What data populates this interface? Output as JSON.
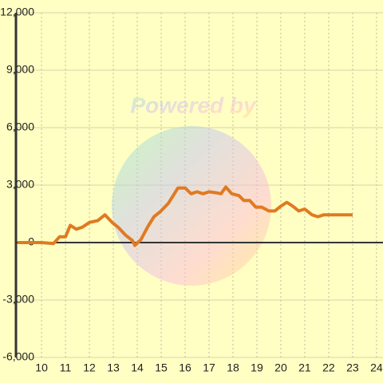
{
  "chart_data": {
    "type": "line",
    "watermark": "Powered by",
    "xlim": [
      8.93,
      24.27
    ],
    "ylim": [
      -6000,
      12000
    ],
    "xticks": [
      10,
      11,
      12,
      13,
      14,
      15,
      16,
      17,
      18,
      19,
      20,
      21,
      22,
      23,
      24
    ],
    "yticks": [
      {
        "value": -6000,
        "label": "-6,000"
      },
      {
        "value": -3000,
        "label": "-3,000"
      },
      0,
      {
        "value": 3000,
        "label": "3,000"
      },
      {
        "value": 6000,
        "label": "6,000"
      },
      {
        "value": 9000,
        "label": "9,000"
      },
      {
        "value": 12000,
        "label": "12,000"
      }
    ],
    "grid": true,
    "series": [
      {
        "color": "#e07a22",
        "x": [
          9.0,
          10.0,
          10.5,
          10.75,
          11.0,
          11.2,
          11.45,
          11.7,
          12.0,
          12.35,
          12.65,
          12.95,
          13.2,
          13.5,
          13.8,
          13.9,
          14.15,
          14.45,
          14.7,
          14.95,
          15.3,
          15.55,
          15.7,
          16.0,
          16.25,
          16.5,
          16.75,
          17.0,
          17.3,
          17.5,
          17.7,
          17.95,
          18.25,
          18.45,
          18.7,
          18.95,
          19.2,
          19.5,
          19.75,
          20.0,
          20.25,
          20.5,
          20.75,
          21.0,
          21.3,
          21.55,
          21.8,
          23.0
        ],
        "values": [
          0,
          0,
          -50,
          300,
          300,
          900,
          700,
          800,
          1050,
          1150,
          1450,
          1050,
          800,
          400,
          100,
          -150,
          150,
          850,
          1350,
          1600,
          2050,
          2550,
          2850,
          2850,
          2550,
          2650,
          2550,
          2650,
          2600,
          2550,
          2900,
          2550,
          2450,
          2200,
          2200,
          1850,
          1850,
          1650,
          1650,
          1900,
          2100,
          1900,
          1650,
          1750,
          1450,
          1350,
          1450,
          1450
        ]
      }
    ]
  }
}
